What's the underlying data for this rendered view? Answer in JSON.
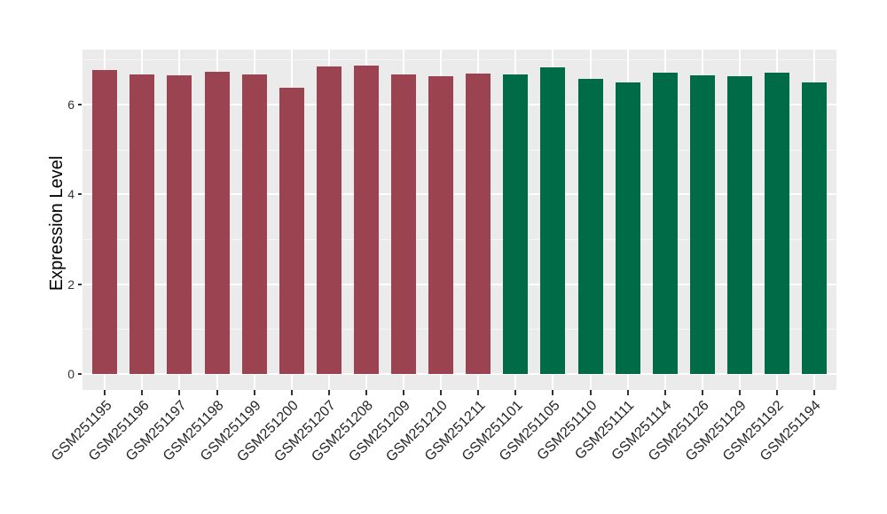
{
  "chart_data": {
    "type": "bar",
    "title": "",
    "xlabel": "",
    "ylabel": "Expression Level",
    "ylim": [
      0,
      7.2
    ],
    "yticks": [
      0,
      2,
      4,
      6
    ],
    "yticks_minor": [
      1,
      3,
      5,
      7
    ],
    "grid": true,
    "legend": "none",
    "x_label_rotation": 45,
    "panel_bg": "#EBEBEB",
    "grid_color": "#FFFFFF",
    "categories": [
      "GSM251195",
      "GSM251196",
      "GSM251197",
      "GSM251198",
      "GSM251199",
      "GSM251200",
      "GSM251207",
      "GSM251208",
      "GSM251209",
      "GSM251210",
      "GSM251211",
      "GSM251101",
      "GSM251105",
      "GSM251110",
      "GSM251111",
      "GSM251114",
      "GSM251126",
      "GSM251129",
      "GSM251192",
      "GSM251194"
    ],
    "values": [
      6.77,
      6.68,
      6.66,
      6.72,
      6.68,
      6.38,
      6.84,
      6.86,
      6.68,
      6.63,
      6.7,
      6.67,
      6.82,
      6.58,
      6.5,
      6.71,
      6.66,
      6.64,
      6.71,
      6.5
    ],
    "bar_groups": [
      "group1",
      "group1",
      "group1",
      "group1",
      "group1",
      "group1",
      "group1",
      "group1",
      "group1",
      "group1",
      "group1",
      "group2",
      "group2",
      "group2",
      "group2",
      "group2",
      "group2",
      "group2",
      "group2",
      "group2"
    ],
    "group_colors": {
      "group1": "#9B4350",
      "group2": "#006B47"
    }
  }
}
